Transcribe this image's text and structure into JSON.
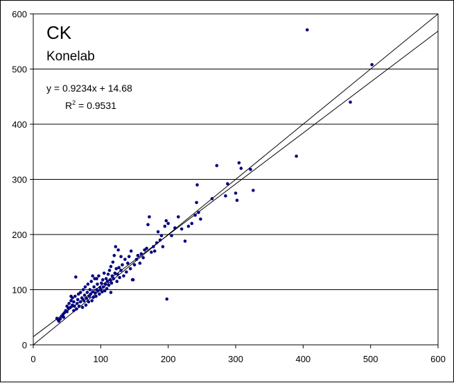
{
  "chart_data": {
    "type": "scatter",
    "title": "CK",
    "subtitle": "Konelab",
    "xlabel": "",
    "ylabel": "",
    "xlim": [
      0,
      600
    ],
    "ylim": [
      0,
      600
    ],
    "xticks": [
      "0",
      "100",
      "200",
      "300",
      "400",
      "500",
      "600"
    ],
    "yticks": [
      "0",
      "100",
      "200",
      "300",
      "400",
      "500",
      "600"
    ],
    "grid": "horizontal",
    "point_color": "#000080",
    "annotations": {
      "equation": "y = 0.9234x + 14.68",
      "r2_prefix": "R",
      "r2_exp": "2",
      "r2_suffix": " = 0.9531"
    },
    "lines": [
      {
        "kind": "regression",
        "slope": 0.9234,
        "intercept": 14.68
      },
      {
        "kind": "identity",
        "slope": 1,
        "intercept": 0
      }
    ],
    "points": [
      [
        35,
        48
      ],
      [
        37,
        45
      ],
      [
        38,
        43
      ],
      [
        40,
        47
      ],
      [
        42,
        52
      ],
      [
        44,
        55
      ],
      [
        45,
        50
      ],
      [
        46,
        58
      ],
      [
        48,
        62
      ],
      [
        50,
        60
      ],
      [
        50,
        70
      ],
      [
        52,
        66
      ],
      [
        53,
        75
      ],
      [
        55,
        68
      ],
      [
        56,
        80
      ],
      [
        58,
        72
      ],
      [
        58,
        85
      ],
      [
        60,
        62
      ],
      [
        60,
        78
      ],
      [
        61,
        70
      ],
      [
        62,
        88
      ],
      [
        64,
        65
      ],
      [
        65,
        75
      ],
      [
        66,
        82
      ],
      [
        67,
        92
      ],
      [
        68,
        70
      ],
      [
        70,
        78
      ],
      [
        70,
        95
      ],
      [
        72,
        85
      ],
      [
        73,
        68
      ],
      [
        74,
        100
      ],
      [
        75,
        80
      ],
      [
        76,
        90
      ],
      [
        77,
        105
      ],
      [
        78,
        72
      ],
      [
        79,
        84
      ],
      [
        80,
        95
      ],
      [
        81,
        110
      ],
      [
        82,
        78
      ],
      [
        83,
        88
      ],
      [
        84,
        100
      ],
      [
        85,
        92
      ],
      [
        86,
        115
      ],
      [
        87,
        80
      ],
      [
        88,
        96
      ],
      [
        89,
        86
      ],
      [
        90,
        105
      ],
      [
        91,
        120
      ],
      [
        92,
        94
      ],
      [
        93,
        88
      ],
      [
        94,
        100
      ],
      [
        95,
        110
      ],
      [
        96,
        98
      ],
      [
        97,
        125
      ],
      [
        98,
        92
      ],
      [
        99,
        104
      ],
      [
        100,
        100
      ],
      [
        101,
        112
      ],
      [
        102,
        96
      ],
      [
        103,
        118
      ],
      [
        104,
        105
      ],
      [
        105,
        130
      ],
      [
        106,
        98
      ],
      [
        107,
        110
      ],
      [
        108,
        120
      ],
      [
        109,
        102
      ],
      [
        110,
        115
      ],
      [
        111,
        128
      ],
      [
        112,
        108
      ],
      [
        113,
        135
      ],
      [
        114,
        118
      ],
      [
        115,
        142
      ],
      [
        116,
        112
      ],
      [
        117,
        125
      ],
      [
        118,
        150
      ],
      [
        119,
        120
      ],
      [
        120,
        162
      ],
      [
        121,
        130
      ],
      [
        122,
        178
      ],
      [
        123,
        138
      ],
      [
        124,
        115
      ],
      [
        125,
        128
      ],
      [
        126,
        172
      ],
      [
        127,
        140
      ],
      [
        128,
        122
      ],
      [
        130,
        135
      ],
      [
        132,
        145
      ],
      [
        134,
        125
      ],
      [
        136,
        155
      ],
      [
        138,
        132
      ],
      [
        140,
        148
      ],
      [
        142,
        160
      ],
      [
        144,
        138
      ],
      [
        145,
        170
      ],
      [
        147,
        118
      ],
      [
        150,
        145
      ],
      [
        153,
        155
      ],
      [
        155,
        162
      ],
      [
        158,
        148
      ],
      [
        160,
        165
      ],
      [
        163,
        158
      ],
      [
        165,
        172
      ],
      [
        168,
        175
      ],
      [
        170,
        218
      ],
      [
        172,
        232
      ],
      [
        175,
        168
      ],
      [
        178,
        178
      ],
      [
        180,
        170
      ],
      [
        183,
        185
      ],
      [
        185,
        205
      ],
      [
        188,
        190
      ],
      [
        190,
        198
      ],
      [
        192,
        178
      ],
      [
        195,
        215
      ],
      [
        197,
        225
      ],
      [
        198,
        83
      ],
      [
        200,
        220
      ],
      [
        205,
        198
      ],
      [
        210,
        212
      ],
      [
        215,
        232
      ],
      [
        220,
        210
      ],
      [
        225,
        188
      ],
      [
        230,
        215
      ],
      [
        235,
        220
      ],
      [
        240,
        235
      ],
      [
        242,
        258
      ],
      [
        243,
        290
      ],
      [
        245,
        240
      ],
      [
        248,
        228
      ],
      [
        265,
        265
      ],
      [
        272,
        325
      ],
      [
        285,
        270
      ],
      [
        288,
        292
      ],
      [
        300,
        275
      ],
      [
        302,
        262
      ],
      [
        305,
        330
      ],
      [
        308,
        320
      ],
      [
        322,
        318
      ],
      [
        326,
        280
      ],
      [
        390,
        342
      ],
      [
        406,
        571
      ],
      [
        470,
        440
      ],
      [
        502,
        508
      ],
      [
        63,
        123
      ],
      [
        56,
        88
      ],
      [
        88,
        125
      ],
      [
        94,
        120
      ],
      [
        115,
        95
      ],
      [
        130,
        160
      ],
      [
        148,
        118
      ]
    ]
  }
}
